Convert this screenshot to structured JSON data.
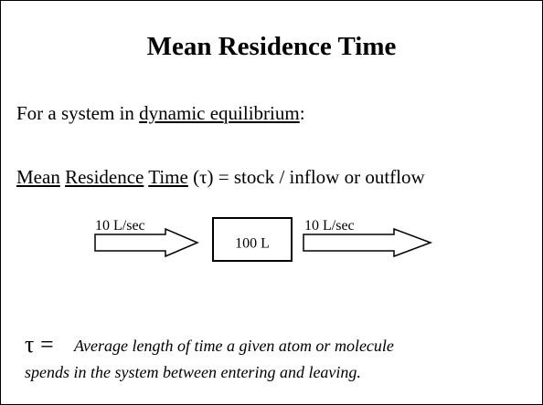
{
  "title": "Mean Residence Time",
  "intro": {
    "prefix": "For a system in ",
    "underlined": "dynamic equilibrium",
    "suffix": ":"
  },
  "definition": {
    "terms": [
      "Mean",
      "Residence",
      "Time"
    ],
    "rest": "(τ) = stock / inflow or outflow"
  },
  "diagram": {
    "inflow_label": "10 L/sec",
    "stock_label": "100 L",
    "outflow_label": "10 L/sec"
  },
  "footnote": {
    "symbol": "τ =",
    "lines": [
      "Average length of time a given atom or molecule",
      "spends in the system between entering and leaving."
    ]
  }
}
